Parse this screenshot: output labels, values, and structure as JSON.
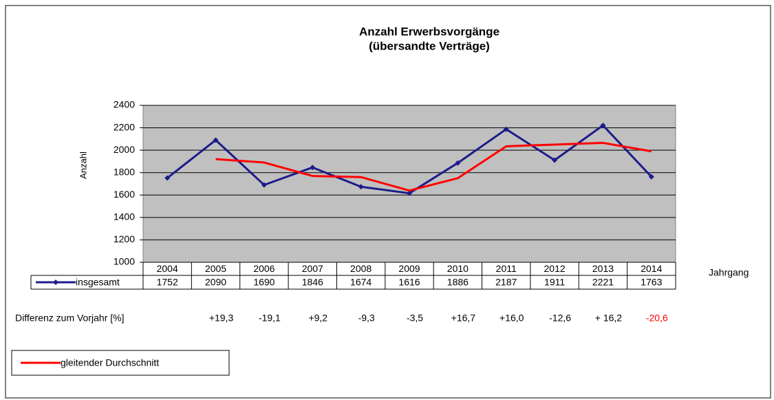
{
  "chart_data": {
    "type": "line",
    "title": "Anzahl  Erwerbsvorgänge",
    "subtitle": "(übersandte  Verträge)",
    "ylabel": "Anzahl",
    "xlabel": "Jahrgang",
    "categories": [
      "2004",
      "2005",
      "2006",
      "2007",
      "2008",
      "2009",
      "2010",
      "2011",
      "2012",
      "2013",
      "2014"
    ],
    "series": [
      {
        "name": "insgesamt",
        "color": "#1c1c8a",
        "values": [
          1752,
          2090,
          1690,
          1846,
          1674,
          1616,
          1886,
          2187,
          1911,
          2221,
          1763
        ]
      },
      {
        "name": "gleitender Durchschnitt",
        "color": "#ff0000",
        "values": [
          null,
          1920,
          1890,
          1770,
          1760,
          1640,
          1750,
          2035,
          2050,
          2065,
          1990
        ]
      }
    ],
    "ylim": [
      1000,
      2400
    ],
    "yticks": [
      1000,
      1200,
      1400,
      1600,
      1800,
      2000,
      2200,
      2400
    ],
    "grid": true,
    "differences": {
      "label": "Differenz zum Vorjahr [%]",
      "values": [
        19.3,
        -19.1,
        9.2,
        -9.3,
        -3.5,
        16.7,
        16.0,
        -12.6,
        16.2,
        -20.6
      ],
      "value_labels": [
        "+19,3",
        "-19,1",
        "+9,2",
        "-9,3",
        "-3,5",
        "+16,7",
        "+16,0",
        "-12,6",
        "+ 16,2",
        "-20,6"
      ]
    }
  }
}
